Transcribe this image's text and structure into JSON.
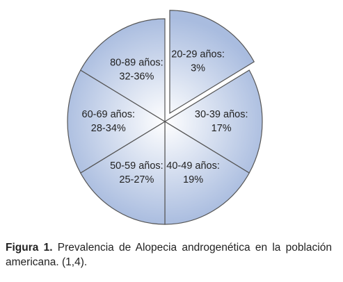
{
  "figure": {
    "slices": [
      {
        "name": "20-29 años:",
        "label": "3%"
      },
      {
        "name": "30-39 años:",
        "label": "17%"
      },
      {
        "name": "40-49 años:",
        "label": "19%"
      },
      {
        "name": "50-59 años:",
        "label": "25-27%"
      },
      {
        "name": "60-69 años:",
        "label": "28-34%"
      },
      {
        "name": "80-89 años:",
        "label": "32-36%"
      }
    ],
    "exploded": [
      true,
      false,
      false,
      false,
      false,
      false
    ]
  },
  "caption": {
    "lead": "Figura 1.",
    "text": "Prevalencia de Alopecia androgenética en la población americana. (1,4)."
  }
}
